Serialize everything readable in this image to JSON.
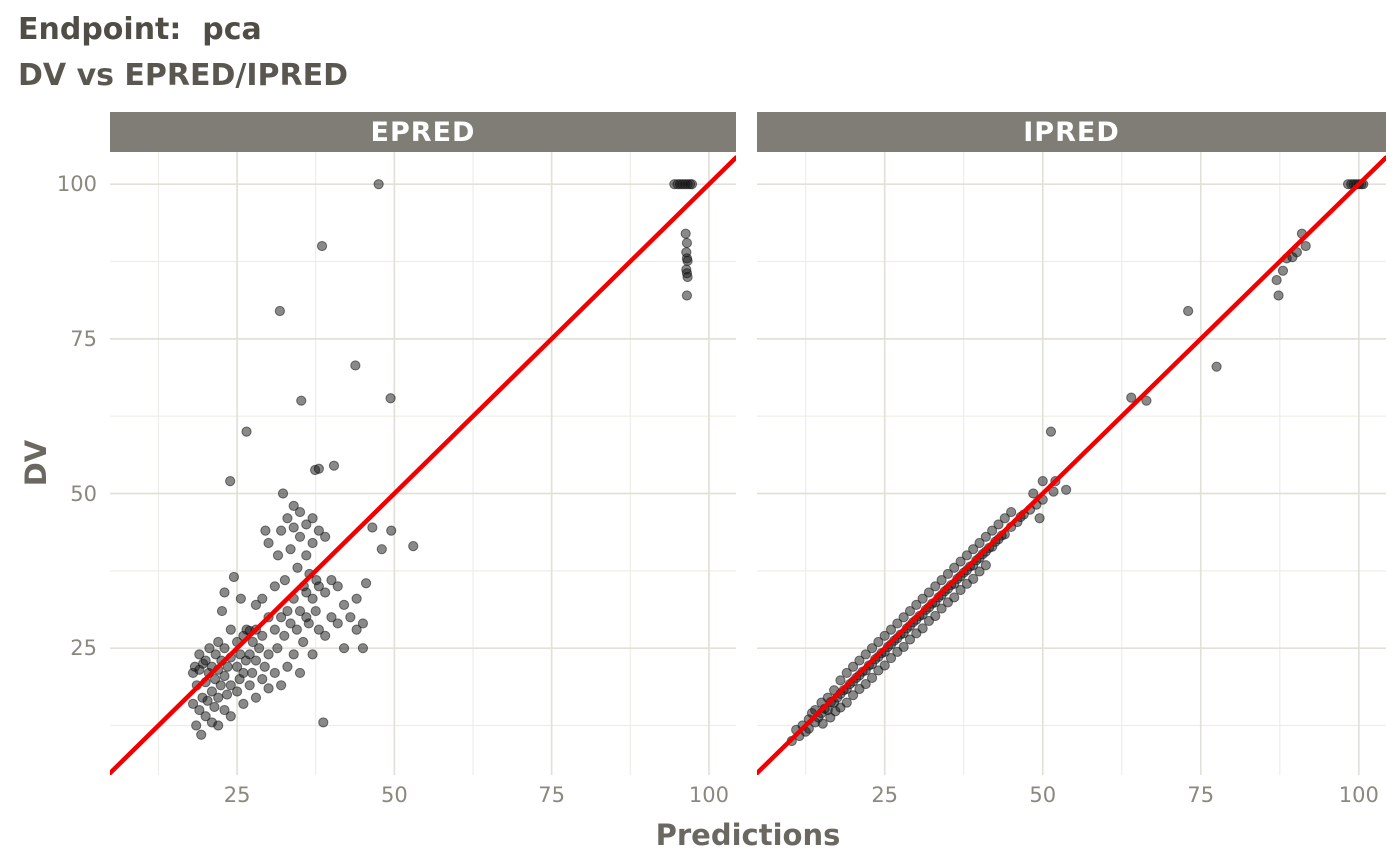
{
  "header": {
    "title": "Endpoint:  pca",
    "subtitle": "DV vs EPRED/IPRED"
  },
  "chart_data": {
    "type": "scatter",
    "title": "Endpoint:  pca",
    "subtitle": "DV vs EPRED/IPRED",
    "xlabel": "Predictions",
    "ylabel": "DV",
    "xlim": [
      4.8,
      104.3
    ],
    "ylim": [
      4.5,
      105.2
    ],
    "x_ticks": [
      25,
      50,
      75,
      100
    ],
    "y_ticks": [
      25,
      50,
      75,
      100
    ],
    "x_minor_ticks": [
      12.5,
      37.5,
      62.5,
      87.5
    ],
    "y_minor_ticks": [
      12.5,
      37.5,
      62.5,
      87.5
    ],
    "grid": true,
    "legend": "none",
    "identity_line": true,
    "point_opacity": 0.5,
    "colors": {
      "identity_line": "#f20000",
      "point": "#141414",
      "grid_major": "#e2e0d9",
      "grid_minor": "#efede7",
      "strip_bg": "#807d77",
      "strip_text": "#ffffff",
      "axis_text": "#8b8880",
      "axis_title": "#6b6861",
      "title_text": "#504d47",
      "panel_bg": "#ffffff"
    },
    "facets": [
      {
        "label": "EPRED",
        "points": [
          [
            18,
            21
          ],
          [
            18,
            16
          ],
          [
            18.3,
            22
          ],
          [
            18.5,
            12.5
          ],
          [
            18.6,
            19
          ],
          [
            19,
            15
          ],
          [
            19,
            21.5
          ],
          [
            19,
            24
          ],
          [
            19.3,
            11
          ],
          [
            19.5,
            17
          ],
          [
            19.6,
            22.5
          ],
          [
            20,
            14
          ],
          [
            20,
            19.5
          ],
          [
            20,
            23
          ],
          [
            20.3,
            16.5
          ],
          [
            20.5,
            21
          ],
          [
            20.6,
            25
          ],
          [
            21,
            13
          ],
          [
            21,
            18
          ],
          [
            21,
            22
          ],
          [
            21.4,
            15.5
          ],
          [
            21.5,
            20
          ],
          [
            21.6,
            24
          ],
          [
            22,
            12.5
          ],
          [
            22,
            17
          ],
          [
            22,
            21.5
          ],
          [
            22,
            26
          ],
          [
            22.4,
            19
          ],
          [
            22.5,
            23
          ],
          [
            22.6,
            31
          ],
          [
            23,
            15
          ],
          [
            23,
            20.5
          ],
          [
            23,
            25
          ],
          [
            23,
            34
          ],
          [
            23.4,
            17.5
          ],
          [
            23.5,
            22
          ],
          [
            23.9,
            52
          ],
          [
            24,
            14
          ],
          [
            24,
            19
          ],
          [
            24,
            23.5
          ],
          [
            24,
            28
          ],
          [
            24.5,
            36.5
          ],
          [
            25,
            18
          ],
          [
            25,
            22
          ],
          [
            25,
            26
          ],
          [
            25.4,
            20
          ],
          [
            25.5,
            24
          ],
          [
            25.6,
            33
          ],
          [
            26,
            16
          ],
          [
            26,
            21
          ],
          [
            26,
            27
          ],
          [
            26.4,
            23
          ],
          [
            26.5,
            28
          ],
          [
            26.5,
            60
          ],
          [
            27,
            19
          ],
          [
            27,
            24
          ],
          [
            27,
            27.8
          ],
          [
            27.4,
            21
          ],
          [
            27.5,
            26
          ],
          [
            28,
            17
          ],
          [
            28,
            23
          ],
          [
            28,
            28
          ],
          [
            28,
            32
          ],
          [
            28.5,
            25
          ],
          [
            29,
            20
          ],
          [
            29,
            27
          ],
          [
            29,
            33
          ],
          [
            29.4,
            22
          ],
          [
            29.5,
            44
          ],
          [
            30,
            18.5
          ],
          [
            30,
            24
          ],
          [
            30,
            30
          ],
          [
            30,
            42
          ],
          [
            31,
            21
          ],
          [
            31,
            28
          ],
          [
            31,
            35
          ],
          [
            31.4,
            25
          ],
          [
            31.5,
            40
          ],
          [
            31.8,
            79.5
          ],
          [
            32,
            19
          ],
          [
            32,
            30
          ],
          [
            32,
            44
          ],
          [
            32.3,
            50
          ],
          [
            32.5,
            27
          ],
          [
            32.6,
            36
          ],
          [
            33,
            22
          ],
          [
            33,
            31
          ],
          [
            33,
            46
          ],
          [
            33.5,
            29
          ],
          [
            33.5,
            41
          ],
          [
            34,
            24
          ],
          [
            34,
            33
          ],
          [
            34,
            44.5
          ],
          [
            34,
            48
          ],
          [
            34.5,
            28
          ],
          [
            34.6,
            38
          ],
          [
            35,
            21
          ],
          [
            35,
            31
          ],
          [
            35,
            43
          ],
          [
            35,
            47
          ],
          [
            35.2,
            65
          ],
          [
            35.5,
            26
          ],
          [
            35.6,
            35
          ],
          [
            36,
            30
          ],
          [
            36,
            34
          ],
          [
            36,
            40
          ],
          [
            36,
            45
          ],
          [
            36.4,
            29
          ],
          [
            36.5,
            37
          ],
          [
            37,
            24
          ],
          [
            37,
            33
          ],
          [
            37,
            42
          ],
          [
            37,
            46
          ],
          [
            37.4,
            53.8
          ],
          [
            37.5,
            31
          ],
          [
            37.6,
            36
          ],
          [
            38,
            28
          ],
          [
            38,
            35
          ],
          [
            38,
            44
          ],
          [
            38,
            54
          ],
          [
            38.5,
            90
          ],
          [
            38.7,
            13
          ],
          [
            39,
            27
          ],
          [
            39,
            34
          ],
          [
            39,
            43
          ],
          [
            40,
            30
          ],
          [
            40,
            36
          ],
          [
            40.4,
            54.5
          ],
          [
            41,
            29
          ],
          [
            41,
            35
          ],
          [
            42,
            25
          ],
          [
            42,
            32
          ],
          [
            43,
            30
          ],
          [
            43.8,
            70.7
          ],
          [
            44,
            28
          ],
          [
            44,
            33
          ],
          [
            45,
            25
          ],
          [
            45,
            29
          ],
          [
            45.5,
            35.5
          ],
          [
            46.5,
            44.5
          ],
          [
            47.5,
            100
          ],
          [
            48,
            41
          ],
          [
            49.4,
            65.4
          ],
          [
            49.5,
            44
          ],
          [
            53,
            41.5
          ],
          [
            94.5,
            100
          ],
          [
            95,
            100
          ],
          [
            95.4,
            100
          ],
          [
            95.8,
            100
          ],
          [
            96.2,
            100
          ],
          [
            96.6,
            100
          ],
          [
            97,
            100
          ],
          [
            97.3,
            100
          ],
          [
            96.3,
            92
          ],
          [
            96.5,
            90.5
          ],
          [
            96.4,
            89
          ],
          [
            96.5,
            88
          ],
          [
            96.6,
            87.6
          ],
          [
            96.4,
            86.2
          ],
          [
            96.5,
            85.6
          ],
          [
            96.6,
            85
          ],
          [
            96.5,
            82
          ]
        ]
      },
      {
        "label": "IPRED",
        "points": [
          [
            10.3,
            10
          ],
          [
            11,
            11.8
          ],
          [
            11.5,
            10.8
          ],
          [
            12,
            12.5
          ],
          [
            12.5,
            11.5
          ],
          [
            13,
            13.5
          ],
          [
            13,
            12
          ],
          [
            13.5,
            14.5
          ],
          [
            14,
            13
          ],
          [
            14,
            15
          ],
          [
            14.5,
            13.8
          ],
          [
            15,
            14.5
          ],
          [
            15,
            16.2
          ],
          [
            15.2,
            12.8
          ],
          [
            15.5,
            15.2
          ],
          [
            16,
            15
          ],
          [
            16,
            17
          ],
          [
            16.4,
            13.8
          ],
          [
            16.5,
            16.3
          ],
          [
            17,
            16.2
          ],
          [
            17,
            18.2
          ],
          [
            17.2,
            14.8
          ],
          [
            17.5,
            17
          ],
          [
            18,
            17.6
          ],
          [
            18,
            15.4
          ],
          [
            18,
            19.8
          ],
          [
            18.5,
            18.2
          ],
          [
            19,
            18.4
          ],
          [
            19,
            16.2
          ],
          [
            19,
            21
          ],
          [
            19.5,
            19.2
          ],
          [
            20,
            19.6
          ],
          [
            20,
            17.4
          ],
          [
            20,
            22
          ],
          [
            20.5,
            20.2
          ],
          [
            21,
            20.6
          ],
          [
            21,
            18.4
          ],
          [
            21,
            23
          ],
          [
            21.5,
            21.2
          ],
          [
            22,
            21.4
          ],
          [
            22,
            19.2
          ],
          [
            22,
            24
          ],
          [
            22.5,
            22.2
          ],
          [
            23,
            22.4
          ],
          [
            23,
            20.2
          ],
          [
            23,
            25
          ],
          [
            23.5,
            23.2
          ],
          [
            24,
            23.6
          ],
          [
            24,
            21.4
          ],
          [
            24,
            26
          ],
          [
            24.5,
            24.2
          ],
          [
            25,
            24.4
          ],
          [
            25,
            22.2
          ],
          [
            25,
            27
          ],
          [
            25.5,
            25.2
          ],
          [
            26,
            25.6
          ],
          [
            26,
            23.4
          ],
          [
            26,
            28
          ],
          [
            26.5,
            26.2
          ],
          [
            27,
            26.6
          ],
          [
            27,
            24.4
          ],
          [
            27,
            29
          ],
          [
            27.5,
            27.2
          ],
          [
            28,
            27.4
          ],
          [
            28,
            25.2
          ],
          [
            28,
            30
          ],
          [
            28.5,
            28.2
          ],
          [
            29,
            28.6
          ],
          [
            29,
            26.4
          ],
          [
            29,
            31
          ],
          [
            29.5,
            29.2
          ],
          [
            30,
            29.6
          ],
          [
            30,
            27.4
          ],
          [
            30,
            32
          ],
          [
            30.5,
            30.2
          ],
          [
            31,
            30.4
          ],
          [
            31,
            28.2
          ],
          [
            31,
            33
          ],
          [
            31.5,
            31.2
          ],
          [
            32,
            31.6
          ],
          [
            32,
            29.4
          ],
          [
            32,
            34
          ],
          [
            32.5,
            32.2
          ],
          [
            33,
            32.4
          ],
          [
            33,
            30.2
          ],
          [
            33,
            35
          ],
          [
            33.5,
            33.2
          ],
          [
            34,
            33.6
          ],
          [
            34,
            31.4
          ],
          [
            34,
            36
          ],
          [
            34.5,
            34.2
          ],
          [
            35,
            34.6
          ],
          [
            35,
            32.4
          ],
          [
            35,
            37
          ],
          [
            35.5,
            35.2
          ],
          [
            36,
            35.4
          ],
          [
            36,
            33.2
          ],
          [
            36,
            38
          ],
          [
            36.5,
            36.2
          ],
          [
            37,
            36.6
          ],
          [
            37,
            34.4
          ],
          [
            37,
            39
          ],
          [
            37.5,
            37.2
          ],
          [
            38,
            37.6
          ],
          [
            38,
            35.4
          ],
          [
            38,
            40
          ],
          [
            38.5,
            38.2
          ],
          [
            39,
            38.4
          ],
          [
            39,
            36.2
          ],
          [
            39,
            41
          ],
          [
            39.5,
            39.2
          ],
          [
            40,
            39.6
          ],
          [
            40,
            37.4
          ],
          [
            40,
            42
          ],
          [
            40.5,
            40.2
          ],
          [
            41,
            40.6
          ],
          [
            41,
            38.4
          ],
          [
            41,
            43
          ],
          [
            41.5,
            41.2
          ],
          [
            42,
            41.4
          ],
          [
            42,
            44
          ],
          [
            42.5,
            42.2
          ],
          [
            43,
            42.6
          ],
          [
            43,
            45
          ],
          [
            43.5,
            43.2
          ],
          [
            44,
            43.4
          ],
          [
            44,
            46
          ],
          [
            45,
            44.6
          ],
          [
            45,
            47
          ],
          [
            46,
            45.4
          ],
          [
            46.5,
            46.2
          ],
          [
            47,
            46.6
          ],
          [
            48,
            47.4
          ],
          [
            48.5,
            50
          ],
          [
            49,
            48.2
          ],
          [
            49.5,
            46
          ],
          [
            50,
            49
          ],
          [
            50,
            52
          ],
          [
            51.3,
            60
          ],
          [
            51.7,
            50.3
          ],
          [
            52,
            52
          ],
          [
            53.7,
            50.6
          ],
          [
            64,
            65.5
          ],
          [
            66.4,
            65
          ],
          [
            73,
            79.5
          ],
          [
            77.5,
            70.5
          ],
          [
            87,
            84.5
          ],
          [
            87.3,
            82
          ],
          [
            88,
            86
          ],
          [
            88.6,
            88
          ],
          [
            89.5,
            88.2
          ],
          [
            90.2,
            89
          ],
          [
            91,
            92
          ],
          [
            91.6,
            90
          ],
          [
            98.3,
            100
          ],
          [
            98.8,
            100
          ],
          [
            99.2,
            100
          ],
          [
            99.6,
            100
          ],
          [
            100,
            100
          ],
          [
            100.4,
            100
          ],
          [
            100.7,
            100
          ]
        ]
      }
    ]
  }
}
